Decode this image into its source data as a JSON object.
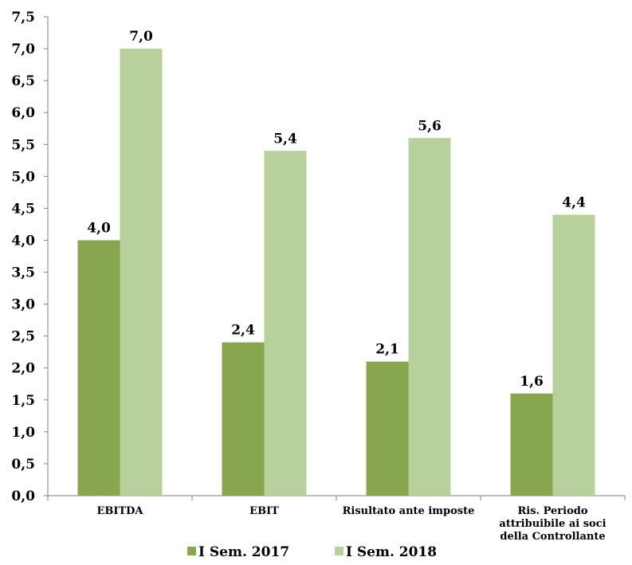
{
  "chart_data": {
    "type": "bar",
    "categories": [
      [
        "EBITDA"
      ],
      [
        "EBIT"
      ],
      [
        "Risultato ante imposte"
      ],
      [
        "Ris. Periodo",
        "attribuibile ai soci",
        "della Controllante"
      ]
    ],
    "series": [
      {
        "name": "I Sem. 2017",
        "color": "#88a64e",
        "values": [
          4.0,
          2.4,
          2.1,
          1.6
        ],
        "labels": [
          "4,0",
          "2,4",
          "2,1",
          "1,6"
        ]
      },
      {
        "name": "I Sem. 2018",
        "color": "#b8d09a",
        "values": [
          7.0,
          5.4,
          5.6,
          4.4
        ],
        "labels": [
          "7,0",
          "5,4",
          "5,6",
          "4,4"
        ]
      }
    ],
    "ylim": [
      0,
      7.5
    ],
    "ytick_step": 0.5,
    "ytick_labels": [
      "0,0",
      "0,5",
      "1,0",
      "1,5",
      "2,0",
      "2,5",
      "3,0",
      "3,5",
      "4,0",
      "4,5",
      "5,0",
      "5,5",
      "6,0",
      "6,5",
      "7,0",
      "7,5"
    ],
    "grid": false,
    "legend_position": "bottom"
  }
}
